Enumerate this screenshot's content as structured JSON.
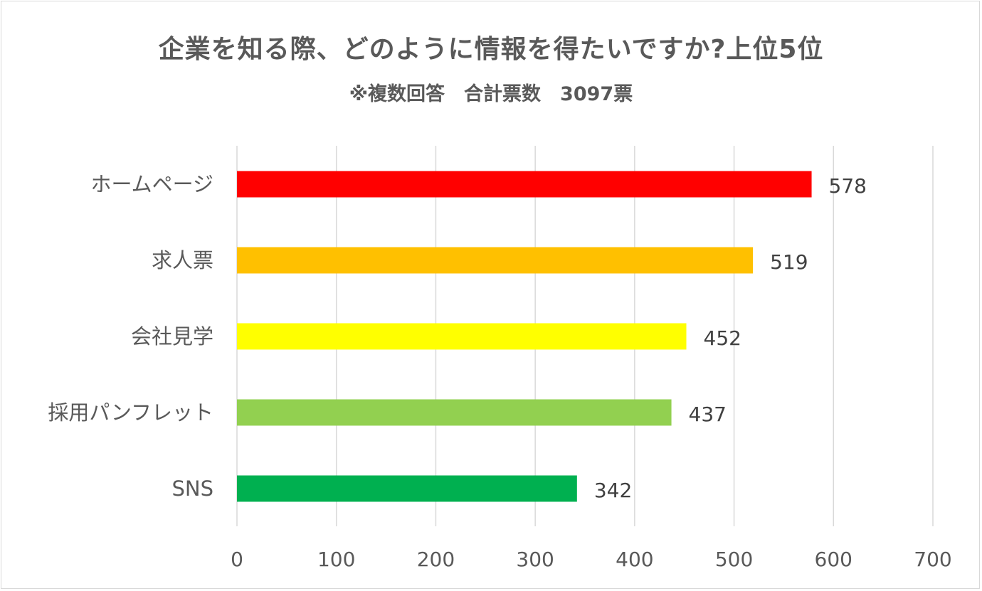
{
  "chart_data": {
    "type": "bar",
    "orientation": "horizontal",
    "title": "企業を知る際、どのように情報を得たいですか?上位5位",
    "subtitle": "※複数回答　合計票数　3097票",
    "categories": [
      "ホームページ",
      "求人票",
      "会社見学",
      "採用パンフレット",
      "SNS"
    ],
    "values": [
      578,
      519,
      452,
      437,
      342
    ],
    "colors": [
      "#ff0000",
      "#ffc000",
      "#ffff00",
      "#92d050",
      "#00b050"
    ],
    "xlim": [
      0,
      700
    ],
    "x_ticks": [
      "0",
      "100",
      "200",
      "300",
      "400",
      "500",
      "600",
      "700"
    ],
    "data_labels": [
      "578",
      "519",
      "452",
      "437",
      "342"
    ],
    "grid": true,
    "legend": "none",
    "xlabel": "",
    "ylabel": ""
  }
}
